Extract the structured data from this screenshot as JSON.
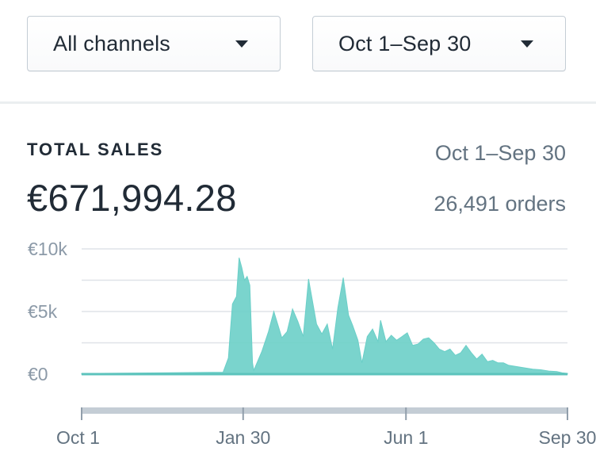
{
  "filters": {
    "channel": {
      "label": "All channels",
      "icon": "caret-down-icon"
    },
    "date_range": {
      "label": "Oct 1–Sep 30",
      "icon": "caret-down-icon"
    }
  },
  "card": {
    "title": "TOTAL SALES",
    "total": "€671,994.28",
    "period": "Oct 1–Sep 30",
    "orders": "26,491 orders"
  },
  "colors": {
    "series": "#6bcfc8",
    "text_primary": "#212b36",
    "text_secondary": "#637381",
    "gridline": "#dfe3e8"
  },
  "chart_data": {
    "type": "area",
    "ylabel_ticks": [
      "€10k",
      "€5k",
      "€0"
    ],
    "y_tick_values": [
      10000,
      5000,
      0
    ],
    "ylim": [
      0,
      10000
    ],
    "x_tick_labels": [
      "Oct 1",
      "Jan 30",
      "Jun 1",
      "Sep 30"
    ],
    "x_tick_days": [
      0,
      121,
      243,
      364
    ],
    "grid": true,
    "series": [
      {
        "x_days": [
          0,
          60,
          106,
          110,
          111,
          113,
          116,
          118,
          120,
          122,
          124,
          126,
          128,
          129,
          135,
          140,
          144,
          150,
          154,
          158,
          162,
          166,
          170,
          176,
          180,
          184,
          188,
          192,
          196,
          200,
          203,
          207,
          210,
          214,
          218,
          222,
          224,
          228,
          232,
          236,
          240,
          244,
          248,
          252,
          256,
          260,
          264,
          268,
          272,
          276,
          280,
          284,
          288,
          292,
          296,
          300,
          304,
          308,
          312,
          316,
          320,
          326,
          332,
          338,
          344,
          350,
          356,
          360,
          364
        ],
        "values": [
          50,
          100,
          150,
          1300,
          2800,
          5600,
          6200,
          9300,
          8500,
          7500,
          7800,
          7100,
          900,
          300,
          1800,
          3400,
          5000,
          2900,
          3400,
          5200,
          4200,
          3000,
          7600,
          4000,
          3200,
          4000,
          2000,
          5300,
          7700,
          4700,
          3900,
          2700,
          900,
          3000,
          3600,
          2600,
          4300,
          2600,
          3100,
          2700,
          3000,
          3300,
          2300,
          2400,
          2800,
          2900,
          2500,
          2000,
          1800,
          2000,
          1500,
          1700,
          2300,
          1700,
          1200,
          1600,
          1000,
          1100,
          900,
          900,
          700,
          600,
          500,
          400,
          350,
          250,
          200,
          100,
          60
        ]
      }
    ]
  }
}
